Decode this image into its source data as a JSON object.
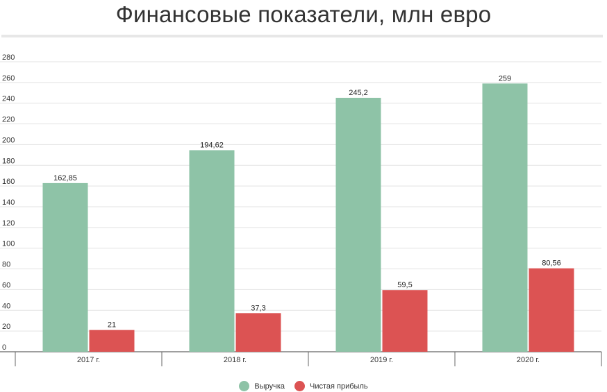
{
  "chart_data": {
    "type": "bar",
    "title": "Финансовые показатели, млн евро",
    "categories": [
      "2017 г.",
      "2018 г.",
      "2019 г.",
      "2020 г."
    ],
    "series": [
      {
        "name": "Выручка",
        "color": "#8ec3a7",
        "values": [
          162.85,
          194.62,
          245.2,
          259
        ],
        "labels": [
          "162,85",
          "194,62",
          "245,2",
          "259"
        ]
      },
      {
        "name": "Чистая прибыль",
        "color": "#dc5353",
        "values": [
          21,
          37.3,
          59.5,
          80.56
        ],
        "labels": [
          "21",
          "37,3",
          "59,5",
          "80,56"
        ]
      }
    ],
    "y_ticks": [
      "0",
      "20",
      "40",
      "60",
      "80",
      "100",
      "120",
      "140",
      "160",
      "180",
      "200",
      "220",
      "240",
      "260",
      "280"
    ],
    "ylim": [
      0,
      280
    ],
    "grid": true,
    "legend_position": "bottom"
  }
}
